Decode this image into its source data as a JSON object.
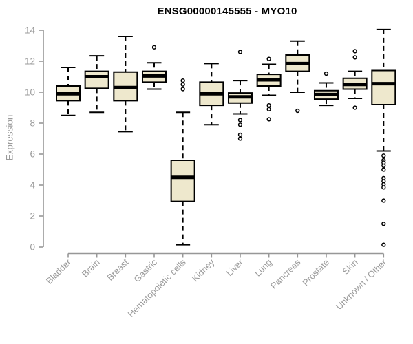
{
  "page": {
    "background": "#FFFFFF"
  },
  "chart_data": {
    "type": "boxplot",
    "title": "ENSG00000145555 - MYO10",
    "ylabel": "Expression",
    "xlabel": "",
    "ylim": [
      0,
      14
    ],
    "yticks": [
      0,
      2,
      4,
      6,
      8,
      10,
      12,
      14
    ],
    "grid": false,
    "categories": [
      "Bladder",
      "Brain",
      "Breast",
      "Gastric",
      "Hematopoietic cells",
      "Kidney",
      "Liver",
      "Lung",
      "Pancreas",
      "Prostate",
      "Skin",
      "Unknown / Other"
    ],
    "series": [
      {
        "name": "Bladder",
        "low": 8.5,
        "q1": 9.45,
        "median": 9.9,
        "q3": 10.4,
        "high": 11.6,
        "outliers": []
      },
      {
        "name": "Brain",
        "low": 8.7,
        "q1": 10.25,
        "median": 11.0,
        "q3": 11.35,
        "high": 12.35,
        "outliers": []
      },
      {
        "name": "Breast",
        "low": 7.45,
        "q1": 9.45,
        "median": 10.3,
        "q3": 11.3,
        "high": 13.6,
        "outliers": []
      },
      {
        "name": "Gastric",
        "low": 10.2,
        "q1": 10.65,
        "median": 11.05,
        "q3": 11.35,
        "high": 11.9,
        "outliers": [
          12.9
        ]
      },
      {
        "name": "Hematopoietic cells",
        "low": 0.15,
        "q1": 2.95,
        "median": 4.5,
        "q3": 5.6,
        "high": 8.7,
        "outliers": [
          10.75,
          10.5,
          10.2
        ]
      },
      {
        "name": "Kidney",
        "low": 7.9,
        "q1": 9.15,
        "median": 9.9,
        "q3": 10.65,
        "high": 11.85,
        "outliers": []
      },
      {
        "name": "Liver",
        "low": 8.6,
        "q1": 9.3,
        "median": 9.7,
        "q3": 9.95,
        "high": 10.75,
        "outliers": [
          12.6,
          8.2,
          7.9,
          7.25,
          7.0
        ]
      },
      {
        "name": "Lung",
        "low": 9.8,
        "q1": 10.4,
        "median": 10.8,
        "q3": 11.15,
        "high": 11.8,
        "outliers": [
          12.15,
          9.15,
          8.9,
          8.25
        ]
      },
      {
        "name": "Pancreas",
        "low": 10.0,
        "q1": 11.35,
        "median": 11.85,
        "q3": 12.4,
        "high": 13.3,
        "outliers": [
          8.8
        ]
      },
      {
        "name": "Prostate",
        "low": 9.15,
        "q1": 9.55,
        "median": 9.85,
        "q3": 10.1,
        "high": 10.6,
        "outliers": [
          11.2
        ]
      },
      {
        "name": "Skin",
        "low": 9.6,
        "q1": 10.2,
        "median": 10.5,
        "q3": 10.9,
        "high": 11.35,
        "outliers": [
          12.65,
          12.25,
          9.0
        ]
      },
      {
        "name": "Unknown / Other",
        "low": 6.2,
        "q1": 9.2,
        "median": 10.55,
        "q3": 11.4,
        "high": 14.05,
        "outliers": [
          5.9,
          5.6,
          5.45,
          5.25,
          5.0,
          4.45,
          4.25,
          4.05,
          3.85,
          3.0,
          1.5,
          0.15
        ]
      }
    ],
    "colors": {
      "box_fill": "#EEE8CD",
      "box_border": "#000000",
      "median": "#000000",
      "whisker": "#000000",
      "axis": "#979797",
      "tick_label": "#9A9A9A",
      "title": "#000000",
      "background": "#FFFFFF"
    }
  }
}
